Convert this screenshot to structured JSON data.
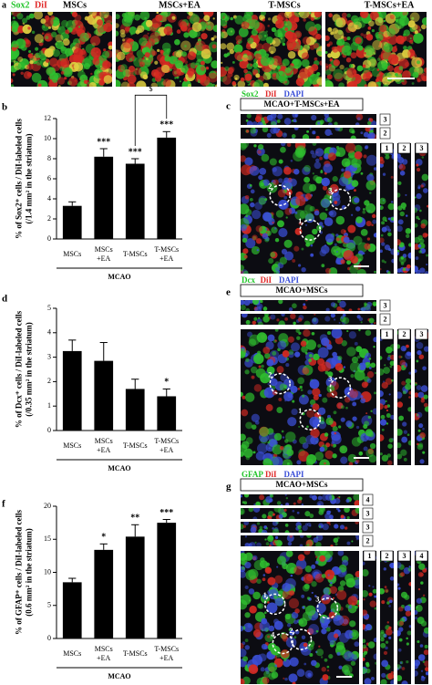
{
  "chart_data": [
    {
      "type": "bar",
      "panel": "b",
      "ylabel": "% of Sox2⁺ cells / DiI-labeled cells\n(/1.4 mm² in the striatum)",
      "categories": [
        "MSCs",
        "MSCs\n+EA",
        "T-MSCs",
        "T-MSCs\n+EA"
      ],
      "values": [
        3.3,
        8.2,
        7.5,
        10.1
      ],
      "errors": [
        0.4,
        0.8,
        0.5,
        0.6
      ],
      "significance": [
        null,
        "***",
        "***",
        "***"
      ],
      "comparisons": [
        {
          "label": "$",
          "from": "T-MSCs",
          "to": "T-MSCs\n+EA"
        }
      ],
      "xlabel": "MCAO",
      "ylim": [
        0,
        12
      ],
      "yticks": [
        0,
        2,
        4,
        6,
        8,
        10,
        12
      ],
      "color": "#000000"
    },
    {
      "type": "bar",
      "panel": "d",
      "ylabel": "% of Dcx⁺ cells / DiI-labeled cells\n(/0.35 mm² in the striatum)",
      "categories": [
        "MSCs",
        "MSCs\n+EA",
        "T-MSCs",
        "T-MSCs\n+EA"
      ],
      "values": [
        3.25,
        2.85,
        1.7,
        1.4
      ],
      "errors": [
        0.45,
        0.75,
        0.4,
        0.3
      ],
      "significance": [
        null,
        null,
        null,
        "*"
      ],
      "xlabel": "MCAO",
      "ylim": [
        0,
        5
      ],
      "yticks": [
        0,
        1,
        2,
        3,
        4,
        5
      ],
      "color": "#000000"
    },
    {
      "type": "bar",
      "panel": "f",
      "ylabel": "% of GFAP⁺ cells / DiI-labeled cells\n(0.6 mm² in the striatum)",
      "categories": [
        "MSCs",
        "MSCs\n+EA",
        "T-MSCs",
        "T-MSCs\n+EA"
      ],
      "values": [
        8.5,
        13.4,
        15.4,
        17.5
      ],
      "errors": [
        0.6,
        0.9,
        1.8,
        0.5
      ],
      "significance": [
        null,
        "*",
        "**",
        "***"
      ],
      "xlabel": "MCAO",
      "ylim": [
        0,
        20
      ],
      "yticks": [
        0,
        5,
        10,
        15,
        20
      ],
      "color": "#000000"
    }
  ],
  "panels": {
    "a": {
      "letter": "a",
      "stains": [
        "Sox2",
        "DiI"
      ],
      "titles": [
        "MSCs",
        "MSCs+EA",
        "T-MSCs",
        "T-MSCs+EA"
      ]
    },
    "c": {
      "letter": "c",
      "stains": [
        "Sox2",
        "DiI",
        "DAPI"
      ],
      "group": "MCAO+T-MSCs+EA",
      "row_labels": [
        "3",
        "2"
      ],
      "column_labels": [
        "1",
        "2",
        "3"
      ],
      "cell_labels": [
        "2",
        "1",
        "3"
      ]
    },
    "e": {
      "letter": "e",
      "stains": [
        "Dcx",
        "DiI",
        "DAPI"
      ],
      "group": "MCAO+MSCs",
      "row_labels": [
        "3",
        "2"
      ],
      "column_labels": [
        "1",
        "2",
        "3"
      ],
      "cell_labels": [
        "2",
        "1",
        "3"
      ]
    },
    "g": {
      "letter": "g",
      "stains": [
        "GFAP",
        "DiI",
        "DAPI"
      ],
      "group": "MCAO+MSCs",
      "row_labels": [
        "4",
        "3",
        "3",
        "2"
      ],
      "column_labels": [
        "1",
        "2",
        "3",
        "4"
      ],
      "cell_labels": [
        "1",
        "2",
        "3",
        "4"
      ]
    }
  }
}
